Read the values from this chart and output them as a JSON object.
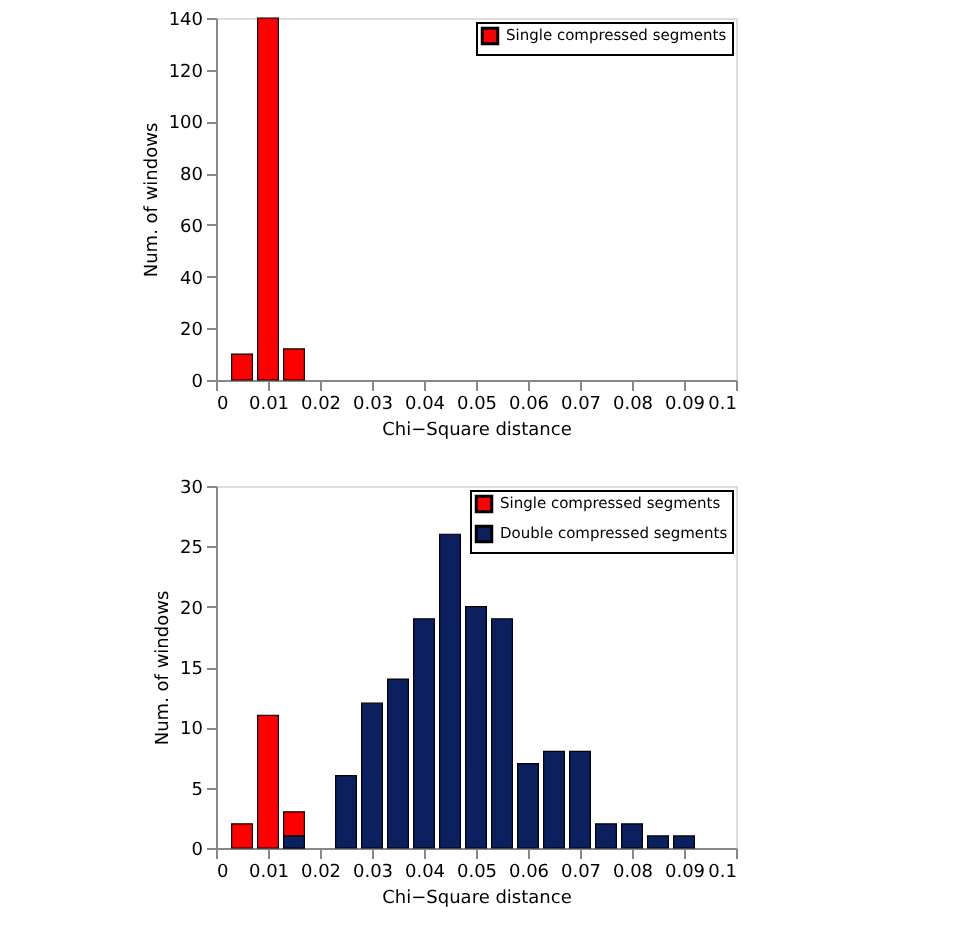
{
  "chart_data": [
    {
      "type": "bar",
      "xlabel": "Chi−Square distance",
      "ylabel": "Num. of windows",
      "xlim": [
        0,
        0.1
      ],
      "xticks": [
        0,
        0.01,
        0.02,
        0.03,
        0.04,
        0.05,
        0.06,
        0.07,
        0.08,
        0.09,
        0.1
      ],
      "ylim": [
        0,
        140
      ],
      "yticks": [
        0,
        20,
        40,
        60,
        80,
        100,
        120,
        140
      ],
      "grid": false,
      "legend": "top right",
      "series": [
        {
          "name": "Single compressed segments",
          "color": "#ff0000",
          "x": [
            0.005,
            0.01,
            0.015
          ],
          "values": [
            10,
            140,
            12
          ]
        }
      ]
    },
    {
      "type": "bar",
      "xlabel": "Chi−Square distance",
      "ylabel": "Num. of windows",
      "xlim": [
        0,
        0.1
      ],
      "xticks": [
        0,
        0.01,
        0.02,
        0.03,
        0.04,
        0.05,
        0.06,
        0.07,
        0.08,
        0.09,
        0.1
      ],
      "ylim": [
        0,
        30
      ],
      "yticks": [
        0,
        5,
        10,
        15,
        20,
        25,
        30
      ],
      "grid": false,
      "legend": "top right",
      "series": [
        {
          "name": "Single compressed segments",
          "color": "#ff0000",
          "x": [
            0.005,
            0.01,
            0.015
          ],
          "values": [
            2,
            11,
            3
          ]
        },
        {
          "name": "Double compressed segments",
          "color": "#0c1f5e",
          "x": [
            0.015,
            0.025,
            0.03,
            0.035,
            0.04,
            0.045,
            0.05,
            0.055,
            0.06,
            0.065,
            0.07,
            0.075,
            0.08,
            0.085,
            0.09
          ],
          "values": [
            1,
            6,
            12,
            14,
            19,
            26,
            20,
            19,
            7,
            8,
            8,
            2,
            2,
            1,
            1
          ]
        }
      ]
    }
  ]
}
